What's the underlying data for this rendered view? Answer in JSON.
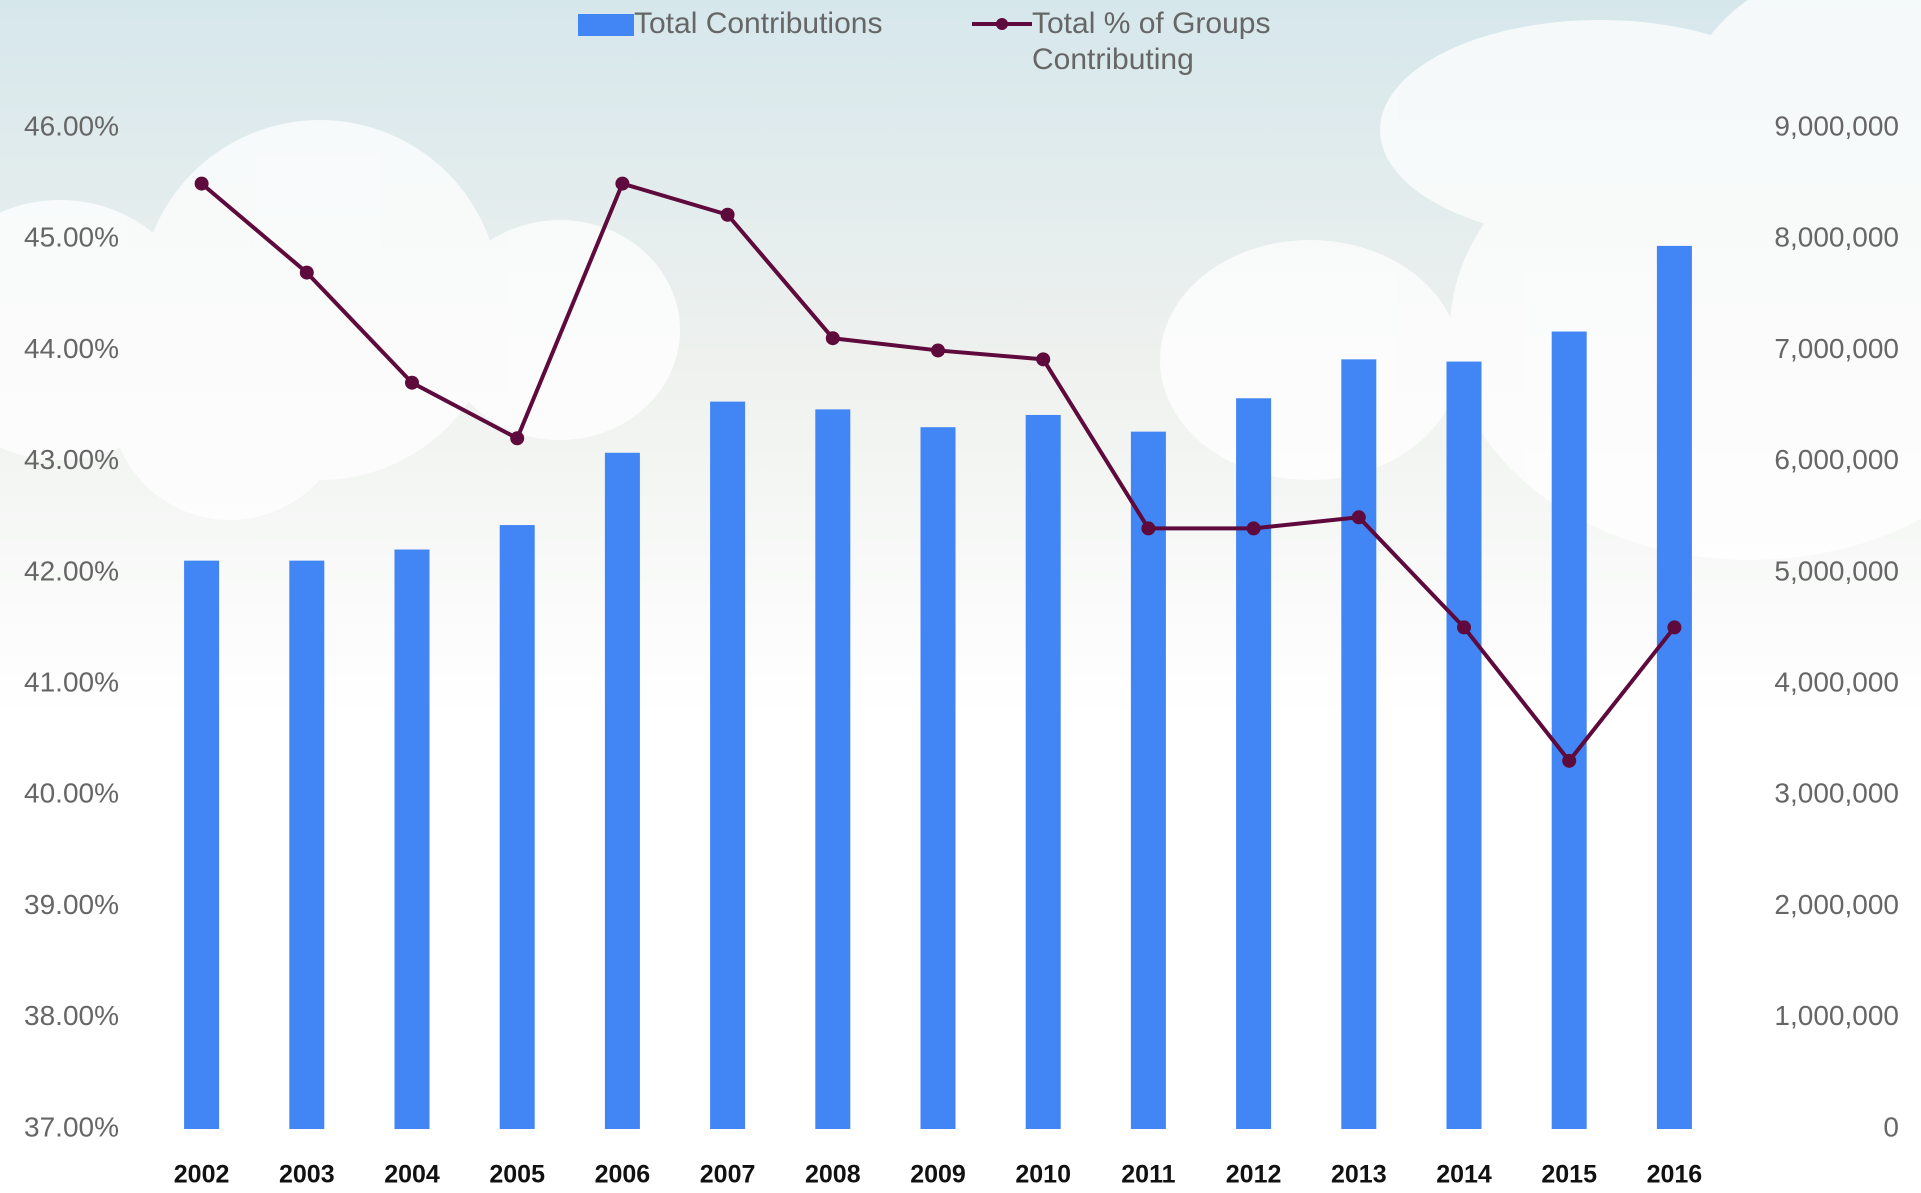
{
  "chart_data": {
    "type": "bar_line",
    "categories": [
      "2002",
      "2003",
      "2004",
      "2005",
      "2006",
      "2007",
      "2008",
      "2009",
      "2010",
      "2011",
      "2012",
      "2013",
      "2014",
      "2015",
      "2016"
    ],
    "series": [
      {
        "name": "Total Contributions",
        "color": "#4285f4",
        "type": "bar",
        "axis": "y2",
        "values": [
          5110000,
          5110000,
          5210000,
          5430000,
          6080000,
          6540000,
          6470000,
          6310000,
          6420000,
          6270000,
          6570000,
          6920000,
          6900000,
          7170000,
          7940000
        ]
      },
      {
        "name": "Total % of Groups Contributing",
        "color": "#5e0a3c",
        "type": "line",
        "values": [
          45.5,
          44.7,
          43.71,
          43.21,
          45.5,
          45.22,
          44.11,
          44.0,
          43.92,
          42.4,
          42.4,
          42.5,
          41.51,
          40.31,
          41.51
        ]
      }
    ],
    "ylim": [
      37,
      46
    ],
    "yticks": [
      {
        "value": 37,
        "label": "37.00%"
      },
      {
        "value": 38,
        "label": "38.00%"
      },
      {
        "value": 39,
        "label": "39.00%"
      },
      {
        "value": 40,
        "label": "40.00%"
      },
      {
        "value": 41,
        "label": "41.00%"
      },
      {
        "value": 42,
        "label": "42.00%"
      },
      {
        "value": 43,
        "label": "43.00%"
      },
      {
        "value": 44,
        "label": "44.00%"
      },
      {
        "value": 45,
        "label": "45.00%"
      },
      {
        "value": 46,
        "label": "46.00%"
      }
    ],
    "y2lim": [
      0,
      9000000
    ],
    "y2ticks": [
      0,
      {
        "value": 1000000,
        "label": "1,000,000"
      },
      {
        "value": 2000000,
        "label": "2,000,000"
      },
      {
        "value": 3000000,
        "label": "3,000,000"
      },
      {
        "value": 4000000,
        "label": "4,000,000"
      },
      {
        "value": 5000000,
        "label": "5,000,000"
      },
      {
        "value": 6000000,
        "label": "6,000,000"
      },
      {
        "value": 7000000,
        "label": "7,000,000"
      },
      {
        "value": 8000000,
        "label": "8,000,000"
      },
      {
        "value": 9000000,
        "label": "9,000,000"
      }
    ],
    "grid": false
  }
}
